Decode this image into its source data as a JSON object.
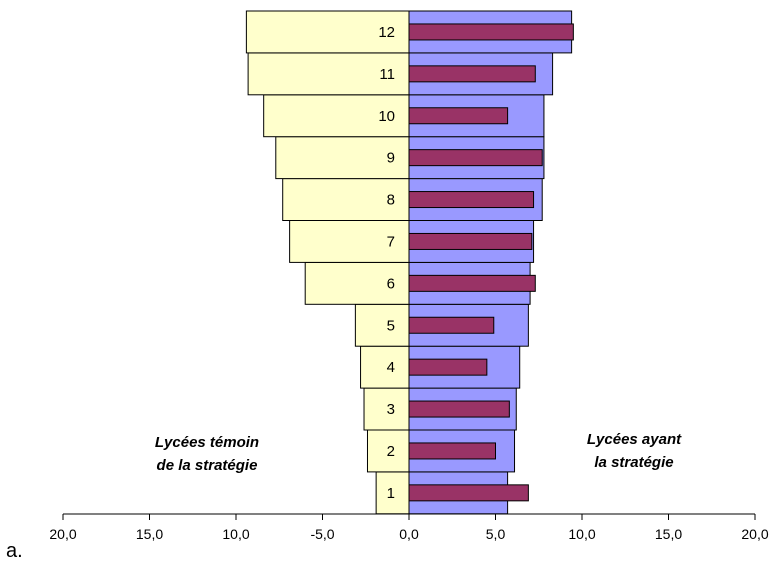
{
  "figure_label": "a.",
  "chart_data": {
    "type": "bar",
    "orientation": "horizontal",
    "categories": [
      "1",
      "2",
      "3",
      "4",
      "5",
      "6",
      "7",
      "8",
      "9",
      "10",
      "11",
      "12"
    ],
    "series": [
      {
        "key": "left",
        "values": [
          -1.9,
          -2.4,
          -2.6,
          -2.8,
          -3.1,
          -6.0,
          -6.9,
          -7.3,
          -7.7,
          -8.4,
          -9.3,
          -9.4
        ],
        "color": "#ffffcc",
        "label_lines": [
          "Lycées témoin",
          "de la stratégie"
        ]
      },
      {
        "key": "right",
        "values": [
          5.7,
          6.1,
          6.2,
          6.4,
          6.9,
          7.0,
          7.2,
          7.7,
          7.8,
          7.8,
          8.3,
          9.4
        ],
        "color": "#9999ff",
        "label_lines": [
          "Lycées ayant",
          "la stratégie"
        ]
      },
      {
        "key": "inner",
        "values": [
          6.9,
          5.0,
          5.8,
          4.5,
          4.9,
          7.3,
          7.1,
          7.2,
          7.7,
          5.7,
          7.3,
          9.5
        ],
        "color": "#993366"
      }
    ],
    "x_ticks": [
      "20,0",
      "15,0",
      "10,0",
      "-5,0",
      "0,0",
      "5,0",
      "10,0",
      "15,0",
      "20,0"
    ],
    "xlim": [
      -20,
      20
    ],
    "grid": false
  }
}
